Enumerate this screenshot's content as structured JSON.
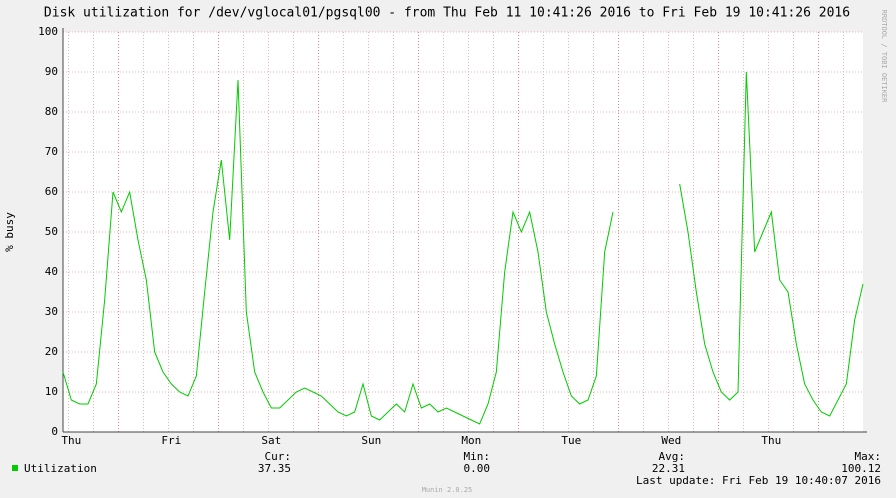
{
  "chart_data": {
    "type": "line",
    "title": "Disk utilization for /dev/vglocal01/pgsql00 - from Thu Feb 11 10:41:26 2016 to Fri Feb 19 10:41:26 2016",
    "y_label": "% busy",
    "side_text": "RRDTOOL / TOBI OETIKER",
    "categories": [
      null,
      "Thu",
      null,
      null,
      null,
      null,
      null,
      null,
      null,
      null,
      null,
      null,
      null,
      "Fri",
      null,
      null,
      null,
      null,
      null,
      null,
      null,
      null,
      null,
      null,
      null,
      "Sat",
      null,
      null,
      null,
      null,
      null,
      null,
      null,
      null,
      null,
      null,
      null,
      "Sun",
      null,
      null,
      null,
      null,
      null,
      null,
      null,
      null,
      null,
      null,
      null,
      "Mon",
      null,
      null,
      null,
      null,
      null,
      null,
      null,
      null,
      null,
      null,
      null,
      "Tue",
      null,
      null,
      null,
      null,
      null,
      null,
      null,
      null,
      null,
      null,
      null,
      "Wed",
      null,
      null,
      null,
      null,
      null,
      null,
      null,
      null,
      null,
      null,
      null,
      "Thu",
      null,
      null,
      null,
      null,
      null,
      null,
      null,
      null,
      null,
      null,
      null
    ],
    "series": [
      {
        "name": "Utilization",
        "color": "#00cc00",
        "values": [
          15,
          8,
          7,
          7,
          12,
          33,
          60,
          55,
          60,
          48,
          38,
          20,
          15,
          12,
          10,
          9,
          14,
          35,
          55,
          68,
          48,
          88,
          30,
          15,
          10,
          6,
          6,
          8,
          10,
          11,
          10,
          9,
          7,
          5,
          4,
          5,
          12,
          4,
          3,
          5,
          7,
          5,
          12,
          6,
          7,
          5,
          6,
          5,
          4,
          3,
          2,
          7,
          15,
          40,
          55,
          50,
          55,
          45,
          30,
          22,
          15,
          9,
          7,
          8,
          14,
          45,
          55,
          null,
          null,
          null,
          null,
          null,
          null,
          null,
          62,
          50,
          35,
          22,
          15,
          10,
          8,
          10,
          90,
          45,
          50,
          55,
          38,
          35,
          22,
          12,
          8,
          5,
          4,
          8,
          12,
          28,
          37
        ]
      }
    ],
    "ylim": [
      0,
      100
    ],
    "yticks": [
      0,
      10,
      20,
      30,
      40,
      50,
      60,
      70,
      80,
      90,
      100
    ],
    "grid": true,
    "legend": {
      "cur_label": "Cur:",
      "cur": "37.35",
      "min_label": "Min:",
      "min": "0.00",
      "avg_label": "Avg:",
      "avg": "22.31",
      "max_label": "Max:",
      "max": "100.12"
    },
    "last_update": "Last update: Fri Feb 19 10:40:07 2016",
    "footer": "Munin 2.0.25"
  }
}
